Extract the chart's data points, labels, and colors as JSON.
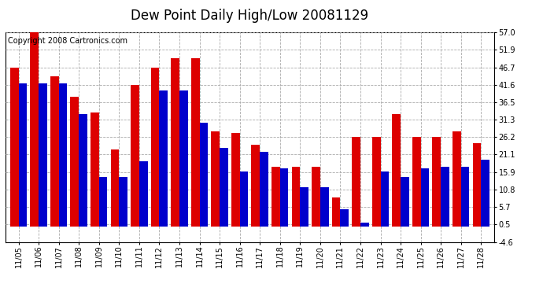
{
  "title": "Dew Point Daily High/Low 20081129",
  "copyright": "Copyright 2008 Cartronics.com",
  "dates": [
    "11/05",
    "11/06",
    "11/07",
    "11/08",
    "11/09",
    "11/10",
    "11/11",
    "11/12",
    "11/13",
    "11/14",
    "11/15",
    "11/16",
    "11/17",
    "11/18",
    "11/19",
    "11/20",
    "11/21",
    "11/22",
    "11/23",
    "11/24",
    "11/25",
    "11/26",
    "11/27",
    "11/28"
  ],
  "high": [
    46.7,
    57.0,
    44.0,
    38.0,
    33.5,
    22.5,
    41.6,
    46.7,
    49.5,
    49.5,
    28.0,
    27.5,
    24.0,
    17.5,
    17.5,
    17.5,
    8.5,
    26.2,
    26.2,
    33.0,
    26.2,
    26.2,
    28.0,
    24.5
  ],
  "low": [
    42.0,
    42.0,
    42.0,
    33.0,
    14.5,
    14.5,
    19.0,
    40.0,
    40.0,
    30.5,
    23.0,
    16.0,
    22.0,
    17.0,
    11.5,
    11.5,
    5.0,
    1.0,
    16.0,
    14.5,
    17.0,
    17.5,
    17.5,
    19.5
  ],
  "high_color": "#dd0000",
  "low_color": "#0000cc",
  "bg_color": "#ffffff",
  "grid_color": "#aaaaaa",
  "yticks": [
    -4.6,
    0.5,
    5.7,
    10.8,
    15.9,
    21.1,
    26.2,
    31.3,
    36.5,
    41.6,
    46.7,
    51.9,
    57.0
  ],
  "ymin": -4.6,
  "ymax": 57.0,
  "bar_width": 0.42,
  "title_fontsize": 12,
  "tick_fontsize": 7,
  "copyright_fontsize": 7
}
